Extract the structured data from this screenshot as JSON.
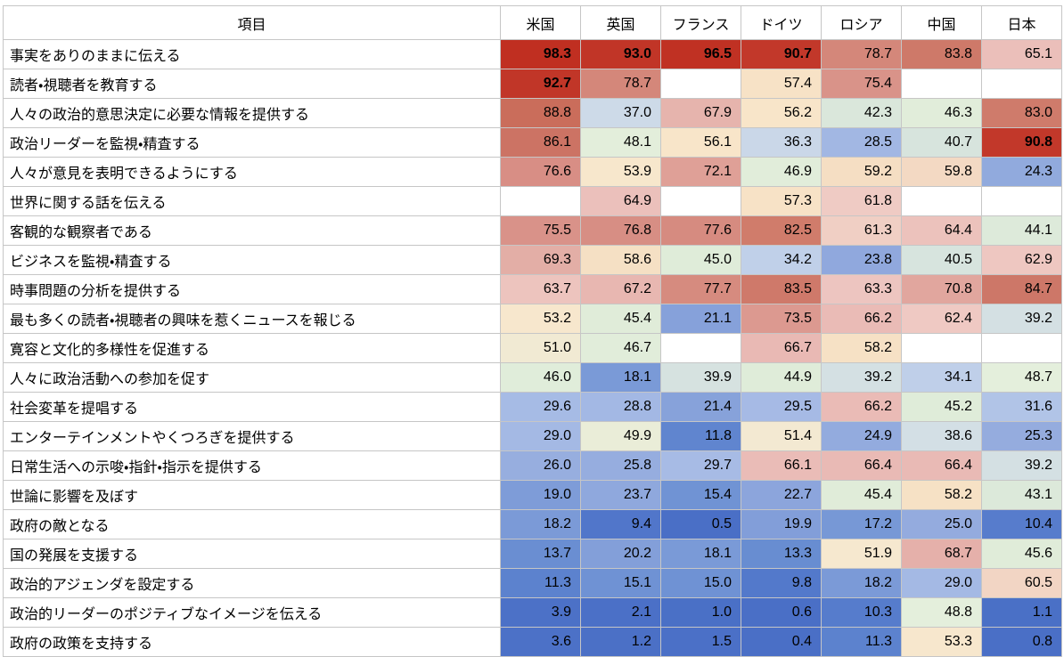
{
  "chart_data": {
    "type": "heatmap",
    "row_header": "項目",
    "columns": [
      "米国",
      "英国",
      "フランス",
      "ドイツ",
      "ロシア",
      "中国",
      "日本"
    ],
    "rows": [
      {
        "label": "事実をありのままに伝える",
        "values": [
          98.3,
          93.0,
          96.5,
          90.7,
          78.7,
          83.8,
          65.1
        ]
      },
      {
        "label": "読者・視聴者を教育する",
        "values": [
          92.7,
          78.7,
          null,
          57.4,
          75.4,
          null,
          null
        ]
      },
      {
        "label": "人々の政治的意思決定に必要な情報を提供する",
        "values": [
          88.8,
          37.0,
          67.9,
          56.2,
          42.3,
          46.3,
          83.0
        ]
      },
      {
        "label": "政治リーダーを監視・精査する",
        "values": [
          86.1,
          48.1,
          56.1,
          36.3,
          28.5,
          40.7,
          90.8
        ]
      },
      {
        "label": "人々が意見を表明できるようにする",
        "values": [
          76.6,
          53.9,
          72.1,
          46.9,
          59.2,
          59.8,
          24.3
        ]
      },
      {
        "label": "世界に関する話を伝える",
        "values": [
          null,
          64.9,
          null,
          57.3,
          61.8,
          null,
          null
        ]
      },
      {
        "label": "客観的な観察者である",
        "values": [
          75.5,
          76.8,
          77.6,
          82.5,
          61.3,
          64.4,
          44.1
        ]
      },
      {
        "label": "ビジネスを監視・精査する",
        "values": [
          69.3,
          58.6,
          45.0,
          34.2,
          23.8,
          40.5,
          62.9
        ]
      },
      {
        "label": "時事問題の分析を提供する",
        "values": [
          63.7,
          67.2,
          77.7,
          83.5,
          63.3,
          70.8,
          84.7
        ]
      },
      {
        "label": "最も多くの読者・視聴者の興味を惹くニュースを報じる",
        "values": [
          53.2,
          45.4,
          21.1,
          73.5,
          66.2,
          62.4,
          39.2
        ]
      },
      {
        "label": "寛容と文化的多様性を促進する",
        "values": [
          51.0,
          46.7,
          null,
          66.7,
          58.2,
          null,
          null
        ]
      },
      {
        "label": "人々に政治活動への参加を促す",
        "values": [
          46.0,
          18.1,
          39.9,
          44.9,
          39.2,
          34.1,
          48.7
        ]
      },
      {
        "label": "社会変革を提唱する",
        "values": [
          29.6,
          28.8,
          21.4,
          29.5,
          66.2,
          45.2,
          31.6
        ]
      },
      {
        "label": "エンターテインメントやくつろぎを提供する",
        "values": [
          29.0,
          49.9,
          11.8,
          51.4,
          24.9,
          38.6,
          25.3
        ]
      },
      {
        "label": "日常生活への示唆・指針・指示を提供する",
        "values": [
          26.0,
          25.8,
          29.7,
          66.1,
          66.4,
          66.4,
          39.2
        ]
      },
      {
        "label": "世論に影響を及ぼす",
        "values": [
          19.0,
          23.7,
          15.4,
          22.7,
          45.4,
          58.2,
          43.1
        ]
      },
      {
        "label": "政府の敵となる",
        "values": [
          18.2,
          9.4,
          0.5,
          19.9,
          17.2,
          25.0,
          10.4
        ]
      },
      {
        "label": "国の発展を支援する",
        "values": [
          13.7,
          20.2,
          18.1,
          13.3,
          51.9,
          68.7,
          45.6
        ]
      },
      {
        "label": "政治的アジェンダを設定する",
        "values": [
          11.3,
          15.1,
          15.0,
          9.8,
          18.2,
          29.0,
          60.5
        ]
      },
      {
        "label": "政治的リーダーのポジティブなイメージを伝える",
        "values": [
          3.9,
          2.1,
          1.0,
          0.6,
          10.3,
          48.8,
          1.1
        ]
      },
      {
        "label": "政府の政策を支持する",
        "values": [
          3.6,
          1.2,
          1.5,
          0.4,
          11.3,
          53.3,
          0.8
        ]
      }
    ],
    "value_range": [
      0,
      100
    ],
    "decimals": 1,
    "bold_threshold": 90,
    "empty_cell_color": "#ffffff",
    "colormap_stops": [
      [
        0,
        "#4a6fc6"
      ],
      [
        9,
        "#4e74c9"
      ],
      [
        13,
        "#678cd1"
      ],
      [
        17,
        "#7697d6"
      ],
      [
        21,
        "#86a1da"
      ],
      [
        26,
        "#97aedf"
      ],
      [
        30,
        "#a8bce6"
      ],
      [
        34,
        "#bfcfe9"
      ],
      [
        38,
        "#d2dde7"
      ],
      [
        41,
        "#d8e5dc"
      ],
      [
        45,
        "#dfecd9"
      ],
      [
        49,
        "#e4efdc"
      ],
      [
        52,
        "#f7e8cf"
      ],
      [
        56,
        "#f8e5c9"
      ],
      [
        59,
        "#f5dfc3"
      ],
      [
        62,
        "#efcac4"
      ],
      [
        66,
        "#eabcb7"
      ],
      [
        69,
        "#e4afa8"
      ],
      [
        73,
        "#dd9b92"
      ],
      [
        77,
        "#d78d83"
      ],
      [
        81,
        "#d17f6e"
      ],
      [
        85,
        "#cd7667"
      ],
      [
        89.9,
        "#c96a58"
      ],
      [
        90,
        "#c2392b"
      ],
      [
        100,
        "#bf2d1f"
      ]
    ]
  }
}
